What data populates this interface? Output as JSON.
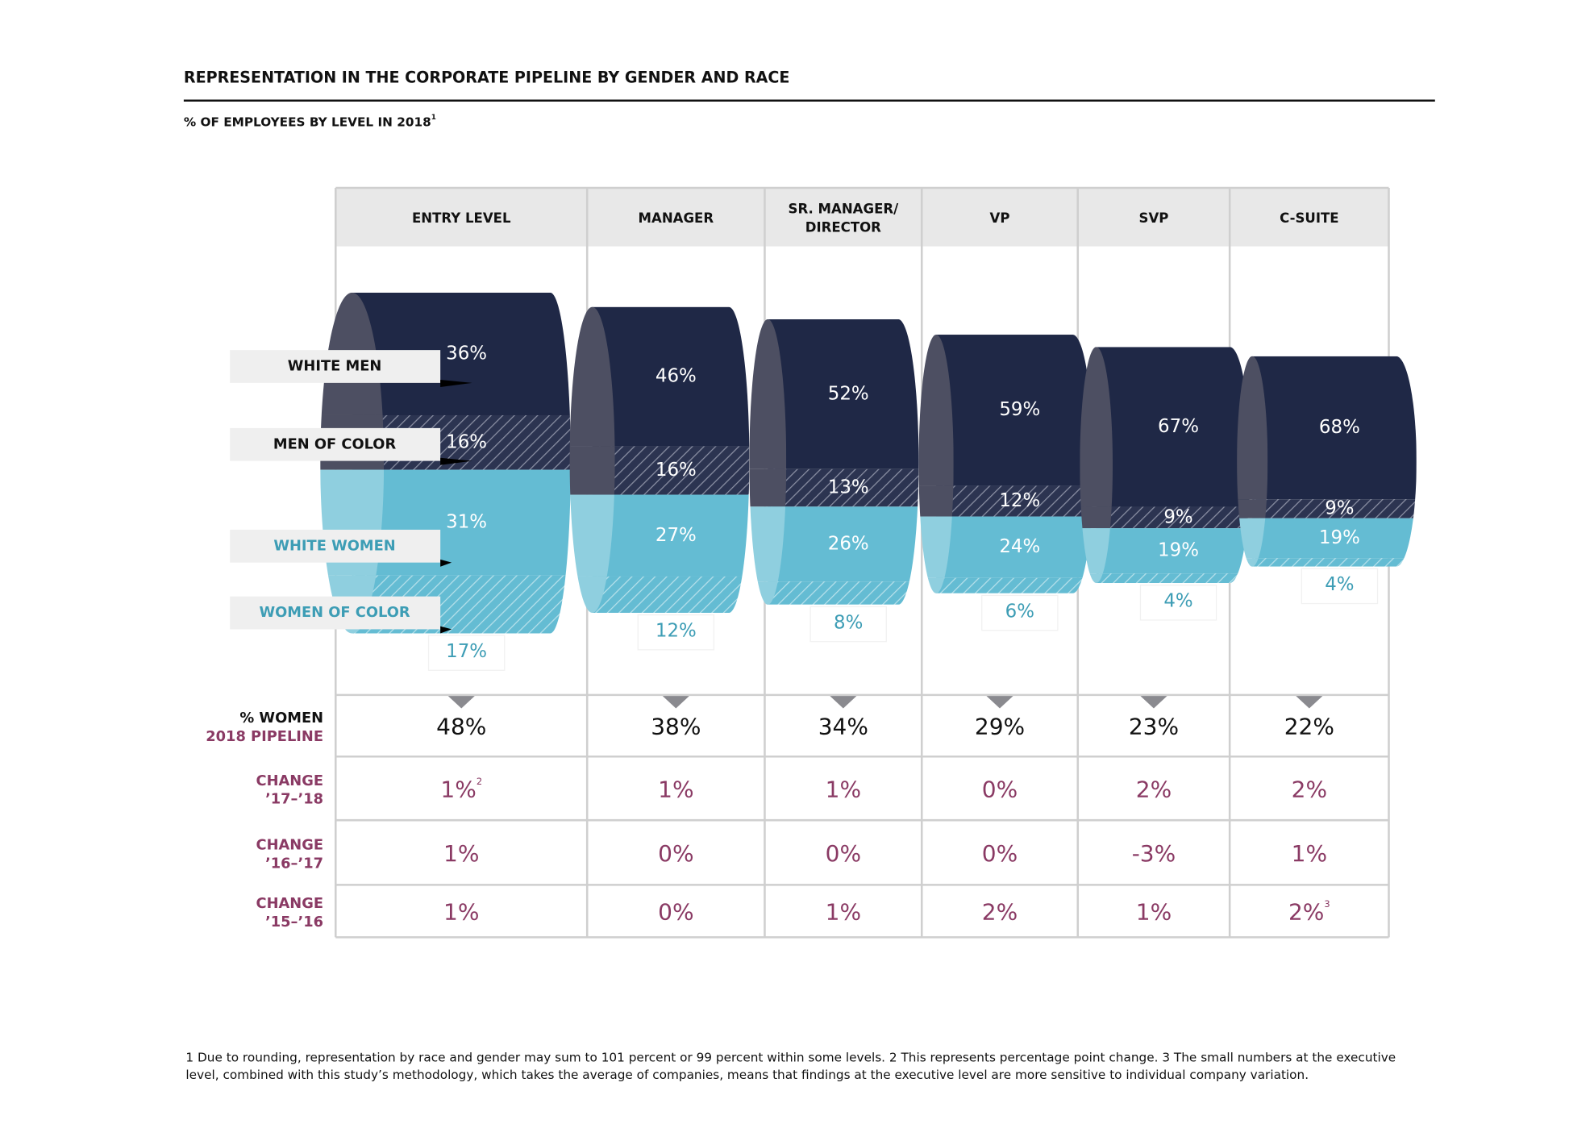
{
  "chart_data": {
    "type": "pipeline",
    "title": "REPRESENTATION IN THE CORPORATE PIPELINE BY GENDER AND RACE",
    "subtitle": "% OF EMPLOYEES BY LEVEL IN 2018",
    "subtitle_note": "1",
    "categories": [
      "ENTRY LEVEL",
      "MANAGER",
      "SR. MANAGER/ DIRECTOR",
      "VP",
      "SVP",
      "C-SUITE"
    ],
    "series": [
      {
        "name": "WHITE MEN",
        "color": "#1f2846",
        "values": [
          36,
          46,
          52,
          59,
          67,
          68
        ],
        "value_labels": [
          "36%",
          "46%",
          "52%",
          "59%",
          "67%",
          "68%"
        ]
      },
      {
        "name": "MEN OF COLOR",
        "color": "#2c3451",
        "pattern": "hatch",
        "values": [
          16,
          16,
          13,
          12,
          9,
          9
        ],
        "value_labels": [
          "16%",
          "16%",
          "13%",
          "12%",
          "9%",
          "9%"
        ]
      },
      {
        "name": "WHITE WOMEN",
        "color": "#64bcd3",
        "values": [
          31,
          27,
          26,
          24,
          19,
          19
        ],
        "value_labels": [
          "31%",
          "27%",
          "26%",
          "24%",
          "19%",
          "19%"
        ]
      },
      {
        "name": "WOMEN OF COLOR",
        "color": "#64bcd3",
        "pattern": "hatch",
        "values": [
          17,
          12,
          8,
          6,
          4,
          4
        ],
        "value_labels": [
          "17%",
          "12%",
          "8%",
          "6%",
          "4%",
          "4%"
        ]
      }
    ],
    "table": {
      "rows": [
        {
          "label": [
            "% WOMEN",
            "2018 PIPELINE"
          ],
          "values": [
            "48%",
            "38%",
            "34%",
            "29%",
            "23%",
            "22%"
          ]
        },
        {
          "label": [
            "CHANGE",
            "’17–’18"
          ],
          "values": [
            "1%",
            "1%",
            "1%",
            "0%",
            "2%",
            "2%"
          ],
          "notes": [
            "2",
            null,
            null,
            null,
            null,
            null
          ]
        },
        {
          "label": [
            "CHANGE",
            "’16–’17"
          ],
          "values": [
            "1%",
            "0%",
            "0%",
            "0%",
            "-3%",
            "1%"
          ]
        },
        {
          "label": [
            "CHANGE",
            "’15–’16"
          ],
          "values": [
            "1%",
            "0%",
            "1%",
            "2%",
            "1%",
            "2%"
          ],
          "notes": [
            null,
            null,
            null,
            null,
            null,
            "3"
          ]
        }
      ]
    },
    "footnote": "1 Due to rounding, representation by race and gender may sum to 101 percent or 99 percent within some levels.  2 This represents percentage point change.  3 The small numbers at the executive level, combined with this study’s methodology, which takes the average of companies, means that findings at the executive level are more sensitive to individual company variation."
  }
}
